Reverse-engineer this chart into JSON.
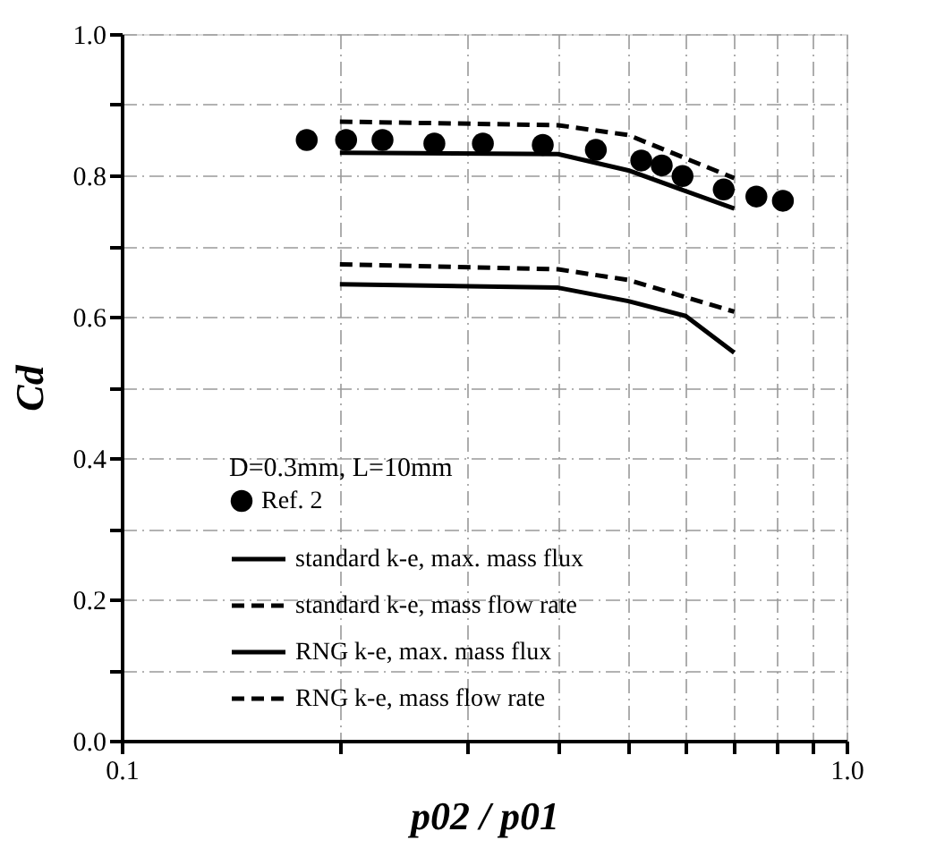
{
  "chart_data": {
    "type": "line",
    "xlabel": "p02 / p01",
    "ylabel": "Cd",
    "legend_title": "D=0.3mm, L=10mm",
    "log": "x",
    "grid": true,
    "legend": "bottom",
    "xlim": [
      0.1,
      1.0
    ],
    "ylim": [
      0.0,
      1.0
    ],
    "xticks": [
      {
        "value": 0.1,
        "label": "0.1"
      },
      {
        "value": 0.2,
        "label": null
      },
      {
        "value": 0.3,
        "label": null
      },
      {
        "value": 0.4,
        "label": null
      },
      {
        "value": 0.5,
        "label": null
      },
      {
        "value": 0.6,
        "label": null
      },
      {
        "value": 0.7,
        "label": null
      },
      {
        "value": 0.8,
        "label": null
      },
      {
        "value": 0.9,
        "label": null
      },
      {
        "value": 1.0,
        "label": "1.0"
      }
    ],
    "yticks": [
      {
        "value": 0.0,
        "label": "0.0"
      },
      {
        "value": 0.1,
        "label": null
      },
      0.2,
      {
        "value": 0.3,
        "label": null
      },
      0.4,
      {
        "value": 0.5,
        "label": null
      },
      0.6,
      {
        "value": 0.7,
        "label": null
      },
      0.8,
      {
        "value": 0.9,
        "label": null
      },
      {
        "value": 1.0,
        "label": "1.0"
      }
    ],
    "series": [
      {
        "name": "Ref. 2",
        "type": "scatter",
        "marker": "circle",
        "color": "#000000",
        "x": [
          0.18,
          0.204,
          0.229,
          0.27,
          0.315,
          0.381,
          0.451,
          0.521,
          0.556,
          0.594,
          0.677,
          0.751,
          0.817
        ],
        "values": [
          0.85,
          0.85,
          0.85,
          0.845,
          0.845,
          0.843,
          0.836,
          0.821,
          0.814,
          0.799,
          0.78,
          0.77,
          0.764
        ]
      },
      {
        "name": "standard k-e, max. mass flux",
        "line_style": "solid",
        "color": "#000000",
        "x": [
          0.2,
          0.4,
          0.5,
          0.7
        ],
        "values": [
          0.832,
          0.83,
          0.807,
          0.753
        ]
      },
      {
        "name": "standard k-e, mass flow rate",
        "line_style": "dashed",
        "color": "#000000",
        "x": [
          0.2,
          0.4,
          0.5,
          0.7
        ],
        "values": [
          0.876,
          0.871,
          0.857,
          0.796
        ]
      },
      {
        "name": "RNG k-e, max. mass flux",
        "line_style": "solid",
        "color": "#000000",
        "x": [
          0.2,
          0.4,
          0.5,
          0.6,
          0.7
        ],
        "values": [
          0.646,
          0.641,
          0.622,
          0.601,
          0.549
        ]
      },
      {
        "name": "RNG k-e, mass flow rate",
        "line_style": "dashed",
        "color": "#000000",
        "x": [
          0.2,
          0.4,
          0.5,
          0.7
        ],
        "values": [
          0.674,
          0.667,
          0.652,
          0.607
        ]
      }
    ]
  }
}
